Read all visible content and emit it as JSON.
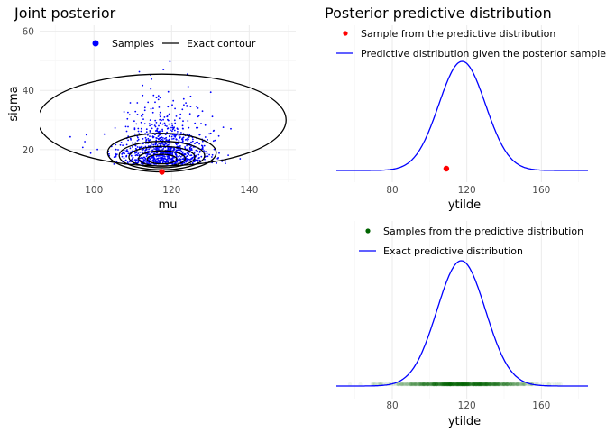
{
  "chart_data": [
    {
      "type": "scatter",
      "title": "Joint posterior",
      "xlabel": "mu",
      "ylabel": "sigma",
      "xlim": [
        86,
        152
      ],
      "ylim": [
        9,
        62
      ],
      "x_ticks": [
        100,
        120,
        140
      ],
      "y_ticks": [
        20,
        40,
        60
      ],
      "grid": true,
      "legend_position": "top",
      "series": [
        {
          "name": "Samples",
          "kind": "points",
          "color": "#0000ff",
          "count": 1000,
          "center_mu": 118,
          "center_sigma": 18
        },
        {
          "name": "Exact contour",
          "kind": "contour",
          "color": "#000000"
        }
      ],
      "highlight_point": {
        "mu": 117.5,
        "sigma": 12.5,
        "color": "#ff0000"
      },
      "contour_levels": [
        {
          "cx": 117.5,
          "cy": 30,
          "rx": 32,
          "ry": 15.5
        },
        {
          "cx": 117.5,
          "cy": 19,
          "rx": 14,
          "ry": 6.5
        },
        {
          "cx": 117.5,
          "cy": 18,
          "rx": 11,
          "ry": 4.8
        },
        {
          "cx": 117.5,
          "cy": 17.5,
          "rx": 8.5,
          "ry": 3.6
        },
        {
          "cx": 117.5,
          "cy": 17,
          "rx": 6,
          "ry": 2.6
        },
        {
          "cx": 117.5,
          "cy": 16.8,
          "rx": 3.8,
          "ry": 1.6
        }
      ]
    },
    {
      "type": "line",
      "title": "Posterior predictive distribution",
      "xlabel": "ytilde",
      "ylabel": "",
      "xlim": [
        50,
        185
      ],
      "x_ticks": [
        80,
        120,
        160
      ],
      "grid": true,
      "legend_position": "top",
      "series": [
        {
          "name": "Sample from the predictive distribution",
          "kind": "point",
          "color": "#ff0000",
          "x": 109
        },
        {
          "name": "Predictive distribution given the posterior sample",
          "kind": "density",
          "color": "#0000ff",
          "mean": 117.5,
          "sd": 12.5
        }
      ]
    },
    {
      "type": "line",
      "title": "",
      "xlabel": "ytilde",
      "ylabel": "",
      "xlim": [
        50,
        185
      ],
      "x_ticks": [
        80,
        120,
        160
      ],
      "grid": true,
      "legend_position": "top",
      "series": [
        {
          "name": "Samples from the predictive distribution",
          "kind": "rug",
          "color": "#006400",
          "count": 1000,
          "range": [
            55,
            185
          ]
        },
        {
          "name": "Exact predictive distribution",
          "kind": "density",
          "color": "#0000ff",
          "mean": 117,
          "sd": 13
        }
      ]
    }
  ]
}
